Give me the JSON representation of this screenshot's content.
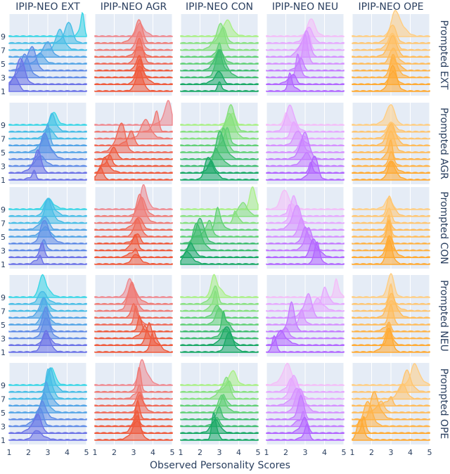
{
  "chart_data": {
    "type": "area",
    "subtype": "ridgeline-grid",
    "column_titles": [
      "IPIP-NEO EXT",
      "IPIP-NEO AGR",
      "IPIP-NEO CON",
      "IPIP-NEO NEU",
      "IPIP-NEO OPE"
    ],
    "row_titles": [
      "Prompted EXT",
      "Prompted AGR",
      "Prompted CON",
      "Prompted NEU",
      "Prompted OPE"
    ],
    "xlabel": "Observed Personality Scores",
    "x_ticks": [
      "1",
      "2",
      "3",
      "4",
      "5"
    ],
    "xlim": [
      1,
      5
    ],
    "y_ticks": [
      "1",
      "3",
      "5",
      "7",
      "9"
    ],
    "levels": [
      1,
      2,
      3,
      4,
      5,
      6,
      7,
      8,
      9
    ],
    "column_colors": {
      "IPIP-NEO EXT": [
        "#6b72e6",
        "#5f8be6",
        "#53a4e6",
        "#47bde6",
        "#3bd6e6"
      ],
      "IPIP-NEO AGR": [
        "#ef5a3c",
        "#ef5a3c",
        "#ef6a58",
        "#ef7a74",
        "#ef8a90"
      ],
      "IPIP-NEO CON": [
        "#1aa866",
        "#3ebc6e",
        "#62d076",
        "#86e07e",
        "#aaf086"
      ],
      "IPIP-NEO NEU": [
        "#b266ff",
        "#c47cff",
        "#d692ff",
        "#e6a8ff",
        "#f4bef8"
      ],
      "IPIP-NEO OPE": [
        "#ffaa33",
        "#ffb347",
        "#ffbc5b",
        "#ffc56f",
        "#ffce83"
      ]
    },
    "grid": true,
    "legend": "none",
    "peaks": [
      [
        [
          1.3,
          1.6,
          1.8,
          2.2,
          2.6,
          3.0,
          3.6,
          4.1,
          4.8
        ],
        [
          3.3,
          3.3,
          3.3,
          3.3,
          3.3,
          3.3,
          3.3,
          3.3,
          3.3
        ],
        [
          3.0,
          3.0,
          3.0,
          3.0,
          3.0,
          3.0,
          3.1,
          3.2,
          3.4
        ],
        [
          2.2,
          2.4,
          2.6,
          2.8,
          3.0,
          3.1,
          3.2,
          3.2,
          3.3
        ],
        [
          3.1,
          3.1,
          3.1,
          3.1,
          3.1,
          3.1,
          3.1,
          3.1,
          3.2
        ]
      ],
      [
        [
          2.3,
          2.5,
          2.6,
          2.8,
          2.9,
          3.0,
          3.1,
          3.2,
          3.3
        ],
        [
          1.3,
          1.5,
          1.8,
          2.0,
          2.4,
          2.9,
          3.6,
          4.2,
          4.8
        ],
        [
          2.4,
          2.6,
          2.8,
          3.0,
          3.2,
          3.4,
          3.5,
          3.6,
          3.7
        ],
        [
          3.5,
          3.3,
          3.1,
          3.0,
          2.8,
          2.6,
          2.4,
          2.2,
          2.0
        ],
        [
          3.0,
          3.0,
          3.0,
          3.0,
          3.0,
          3.0,
          3.0,
          3.0,
          3.0
        ]
      ],
      [
        [
          2.6,
          2.7,
          2.8,
          2.8,
          2.9,
          2.9,
          3.0,
          3.0,
          3.0
        ],
        [
          3.1,
          3.1,
          3.1,
          3.2,
          3.2,
          3.3,
          3.3,
          3.4,
          3.5
        ],
        [
          1.3,
          1.5,
          1.8,
          2.0,
          2.5,
          2.9,
          3.8,
          4.2,
          4.7
        ],
        [
          3.6,
          3.4,
          3.2,
          3.0,
          2.8,
          2.6,
          2.4,
          2.2,
          1.9
        ],
        [
          2.9,
          2.9,
          2.9,
          2.9,
          2.9,
          2.9,
          2.9,
          2.9,
          2.9
        ]
      ],
      [
        [
          2.9,
          2.9,
          2.9,
          2.9,
          2.8,
          2.8,
          2.8,
          2.7,
          2.7
        ],
        [
          4.0,
          3.8,
          3.6,
          3.3,
          3.1,
          3.0,
          2.9,
          2.9,
          2.8
        ],
        [
          3.5,
          3.4,
          3.3,
          3.2,
          3.0,
          2.9,
          2.8,
          2.8,
          2.7
        ],
        [
          1.4,
          1.7,
          2.0,
          2.3,
          2.8,
          3.2,
          3.6,
          4.0,
          4.6
        ],
        [
          2.9,
          2.9,
          2.9,
          2.9,
          3.0,
          3.0,
          3.0,
          3.0,
          3.0
        ]
      ],
      [
        [
          2.4,
          2.5,
          2.6,
          2.7,
          2.8,
          2.9,
          3.0,
          3.1,
          3.2
        ],
        [
          3.2,
          3.2,
          3.2,
          3.2,
          3.3,
          3.3,
          3.3,
          3.3,
          3.4
        ],
        [
          2.7,
          2.8,
          2.9,
          3.0,
          3.1,
          3.2,
          3.4,
          3.5,
          3.7
        ],
        [
          3.1,
          3.0,
          2.9,
          2.8,
          2.7,
          2.6,
          2.4,
          2.3,
          2.1
        ],
        [
          1.4,
          1.6,
          1.8,
          2.1,
          2.5,
          3.0,
          3.6,
          3.8,
          4.2
        ]
      ]
    ]
  }
}
